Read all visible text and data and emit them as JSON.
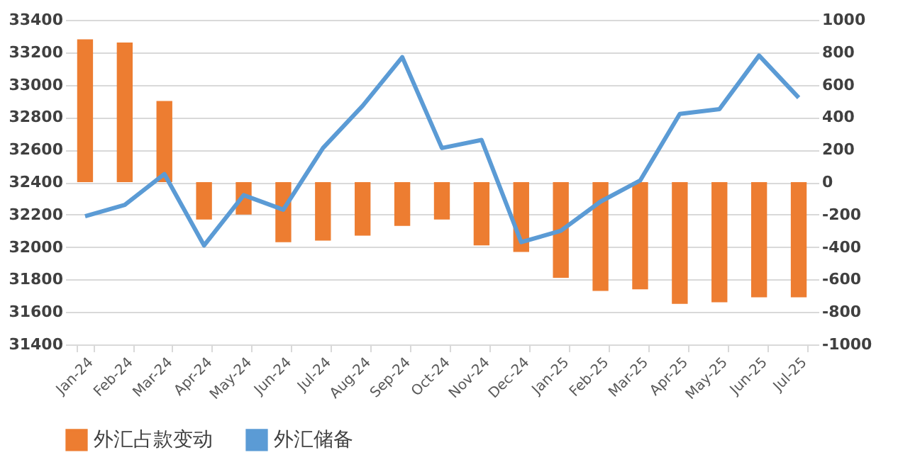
{
  "chart_data": {
    "type": "bar",
    "categories": [
      "Jan-24",
      "Feb-24",
      "Mar-24",
      "Apr-24",
      "May-24",
      "Jun-24",
      "Jul-24",
      "Aug-24",
      "Sep-24",
      "Oct-24",
      "Nov-24",
      "Dec-24",
      "Jan-25",
      "Feb-25",
      "Mar-25",
      "Apr-25",
      "May-25",
      "Jun-25",
      "Jul-25"
    ],
    "series": [
      {
        "name": "外汇占款变动",
        "axis": "y2",
        "color": "#ed7d31",
        "values": [
          880,
          860,
          500,
          -230,
          -200,
          -370,
          -360,
          -330,
          -270,
          -230,
          -390,
          -430,
          -590,
          -670,
          -660,
          -750,
          -740,
          -710,
          -710
        ]
      },
      {
        "name": "外汇储备",
        "type": "line",
        "color": "#5b9bd5",
        "values": [
          32190,
          32260,
          32450,
          32010,
          32320,
          32230,
          32610,
          32870,
          33170,
          32610,
          32660,
          32030,
          32100,
          32280,
          32410,
          32820,
          32850,
          33180,
          32920
        ]
      }
    ],
    "ylim": [
      31400,
      33400
    ],
    "yticks": [
      31400,
      31600,
      31800,
      32000,
      32200,
      32400,
      32600,
      32800,
      33000,
      33200,
      33400
    ],
    "y2lim": [
      -1000,
      1000
    ],
    "y2ticks": [
      -1000,
      -800,
      -600,
      -400,
      -200,
      0,
      200,
      400,
      600,
      800,
      1000
    ],
    "grid": "y",
    "legend": "bottom",
    "marker": "none",
    "line_style": "solid"
  }
}
